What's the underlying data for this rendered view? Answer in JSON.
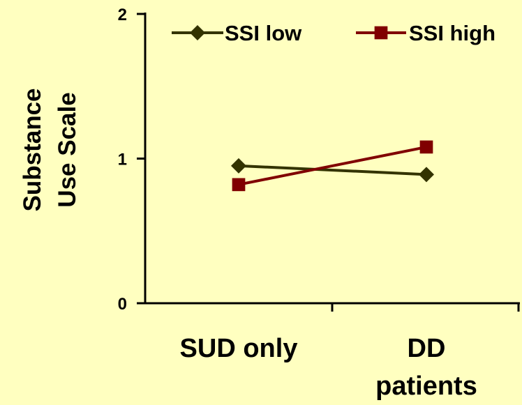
{
  "chart_data": {
    "type": "line",
    "title": "",
    "ylabel_lines": [
      "Substance",
      "Use Scale"
    ],
    "xlabel": "",
    "categories": [
      {
        "lines": [
          "SUD only"
        ]
      },
      {
        "lines": [
          "DD",
          "patients"
        ]
      }
    ],
    "ylim": [
      0,
      2
    ],
    "yticks": [
      0,
      1,
      2
    ],
    "grid": false,
    "legend_position": "top",
    "series": [
      {
        "name": "SSI low",
        "values": [
          0.95,
          0.89
        ],
        "color": "#333300",
        "marker": "diamond"
      },
      {
        "name": "SSI high",
        "values": [
          0.82,
          1.08
        ],
        "color": "#800000",
        "marker": "square"
      }
    ]
  }
}
